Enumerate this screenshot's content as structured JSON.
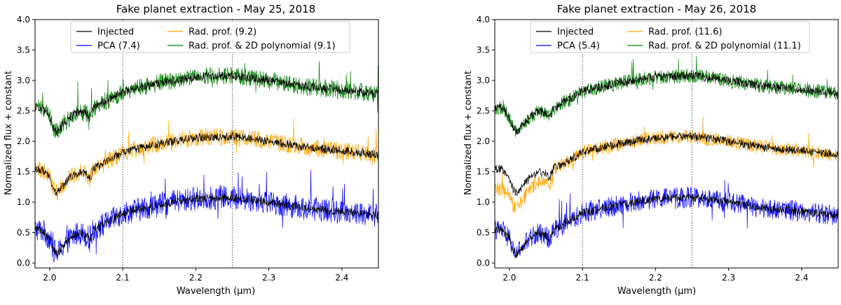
{
  "chart_data": [
    {
      "type": "line",
      "title": "Fake planet extraction - May 25, 2018",
      "xlabel": "Wavelength (μm)",
      "ylabel": "Normalized flux + constant",
      "xlim": [
        1.98,
        2.45
      ],
      "ylim": [
        -0.08,
        4.0
      ],
      "xticks": [
        "2.0",
        "2.1",
        "2.2",
        "2.3",
        "2.4"
      ],
      "xtick_values": [
        2.0,
        2.1,
        2.2,
        2.3,
        2.4
      ],
      "yticks": [
        "0.0",
        "0.5",
        "1.0",
        "1.5",
        "2.0",
        "2.5",
        "3.0",
        "3.5",
        "4.0"
      ],
      "ytick_values": [
        0.0,
        0.5,
        1.0,
        1.5,
        2.0,
        2.5,
        3.0,
        3.5,
        4.0
      ],
      "vlines": [
        2.1,
        2.25
      ],
      "legend_position": "upper center",
      "series": [
        {
          "name": "Injected",
          "label": "Injected",
          "color": "#000000",
          "role": "injected",
          "offsets": [
            0,
            1,
            2
          ],
          "noise": 0.07
        },
        {
          "name": "PCA (7.4)",
          "label": "PCA (7.4)",
          "color": "#0000ff",
          "role": "extracted",
          "offset": 0,
          "noise": 0.2,
          "spikes": 0.45
        },
        {
          "name": "Rad. prof. (9.2)",
          "label": "Rad. prof. (9.2)",
          "color": "#ffa500",
          "role": "extracted",
          "offset": 1,
          "noise": 0.15,
          "spikes": 0.3
        },
        {
          "name": "Rad. prof. & 2D polynomial (9.1)",
          "label": "Rad. prof. & 2D polynomial (9.1)",
          "color": "#008000",
          "role": "extracted",
          "offset": 2,
          "noise": 0.15,
          "spikes": 0.3
        }
      ],
      "baseline_profile": {
        "x": [
          1.98,
          1.99,
          2.0,
          2.005,
          2.01,
          2.02,
          2.03,
          2.04,
          2.05,
          2.055,
          2.06,
          2.08,
          2.1,
          2.15,
          2.2,
          2.25,
          2.3,
          2.35,
          2.4,
          2.45
        ],
        "y": [
          0.55,
          0.54,
          0.4,
          0.22,
          0.15,
          0.3,
          0.42,
          0.5,
          0.46,
          0.38,
          0.55,
          0.67,
          0.82,
          0.96,
          1.06,
          1.08,
          1.0,
          0.9,
          0.85,
          0.78
        ]
      }
    },
    {
      "type": "line",
      "title": "Fake planet extraction - May 26, 2018",
      "xlabel": "Wavelength (μm)",
      "ylabel": "Normalized flux + constant",
      "xlim": [
        1.98,
        2.45
      ],
      "ylim": [
        -0.08,
        4.0
      ],
      "xticks": [
        "2.0",
        "2.1",
        "2.2",
        "2.3",
        "2.4"
      ],
      "xtick_values": [
        2.0,
        2.1,
        2.2,
        2.3,
        2.4
      ],
      "yticks": [
        "0.0",
        "0.5",
        "1.0",
        "1.5",
        "2.0",
        "2.5",
        "3.0",
        "3.5",
        "4.0"
      ],
      "ytick_values": [
        0.0,
        0.5,
        1.0,
        1.5,
        2.0,
        2.5,
        3.0,
        3.5,
        4.0
      ],
      "vlines": [
        2.1,
        2.25
      ],
      "legend_position": "upper center",
      "series": [
        {
          "name": "Injected",
          "label": "Injected",
          "color": "#000000",
          "role": "injected",
          "offsets": [
            0,
            1,
            2
          ],
          "noise": 0.07
        },
        {
          "name": "PCA (5.4)",
          "label": "PCA (5.4)",
          "color": "#0000ff",
          "role": "extracted",
          "offset": 0,
          "noise": 0.17,
          "spikes": 0.4
        },
        {
          "name": "Rad. prof. (11.6)",
          "label": "Rad. prof. (11.6)",
          "color": "#ffa500",
          "role": "extracted",
          "offset": 1,
          "noise": 0.12,
          "spikes": 0.25,
          "dip": -0.25
        },
        {
          "name": "Rad. prof. & 2D polynomial (11.1)",
          "label": "Rad. prof. & 2D polynomial (11.1)",
          "color": "#008000",
          "role": "extracted",
          "offset": 2,
          "noise": 0.12,
          "spikes": 0.25
        }
      ],
      "baseline_profile": {
        "x": [
          1.98,
          1.99,
          2.0,
          2.005,
          2.01,
          2.02,
          2.03,
          2.04,
          2.05,
          2.055,
          2.06,
          2.08,
          2.1,
          2.15,
          2.2,
          2.25,
          2.3,
          2.35,
          2.4,
          2.45
        ],
        "y": [
          0.55,
          0.54,
          0.4,
          0.22,
          0.15,
          0.3,
          0.42,
          0.5,
          0.46,
          0.38,
          0.55,
          0.67,
          0.82,
          0.96,
          1.06,
          1.08,
          1.0,
          0.9,
          0.85,
          0.78
        ]
      }
    }
  ]
}
